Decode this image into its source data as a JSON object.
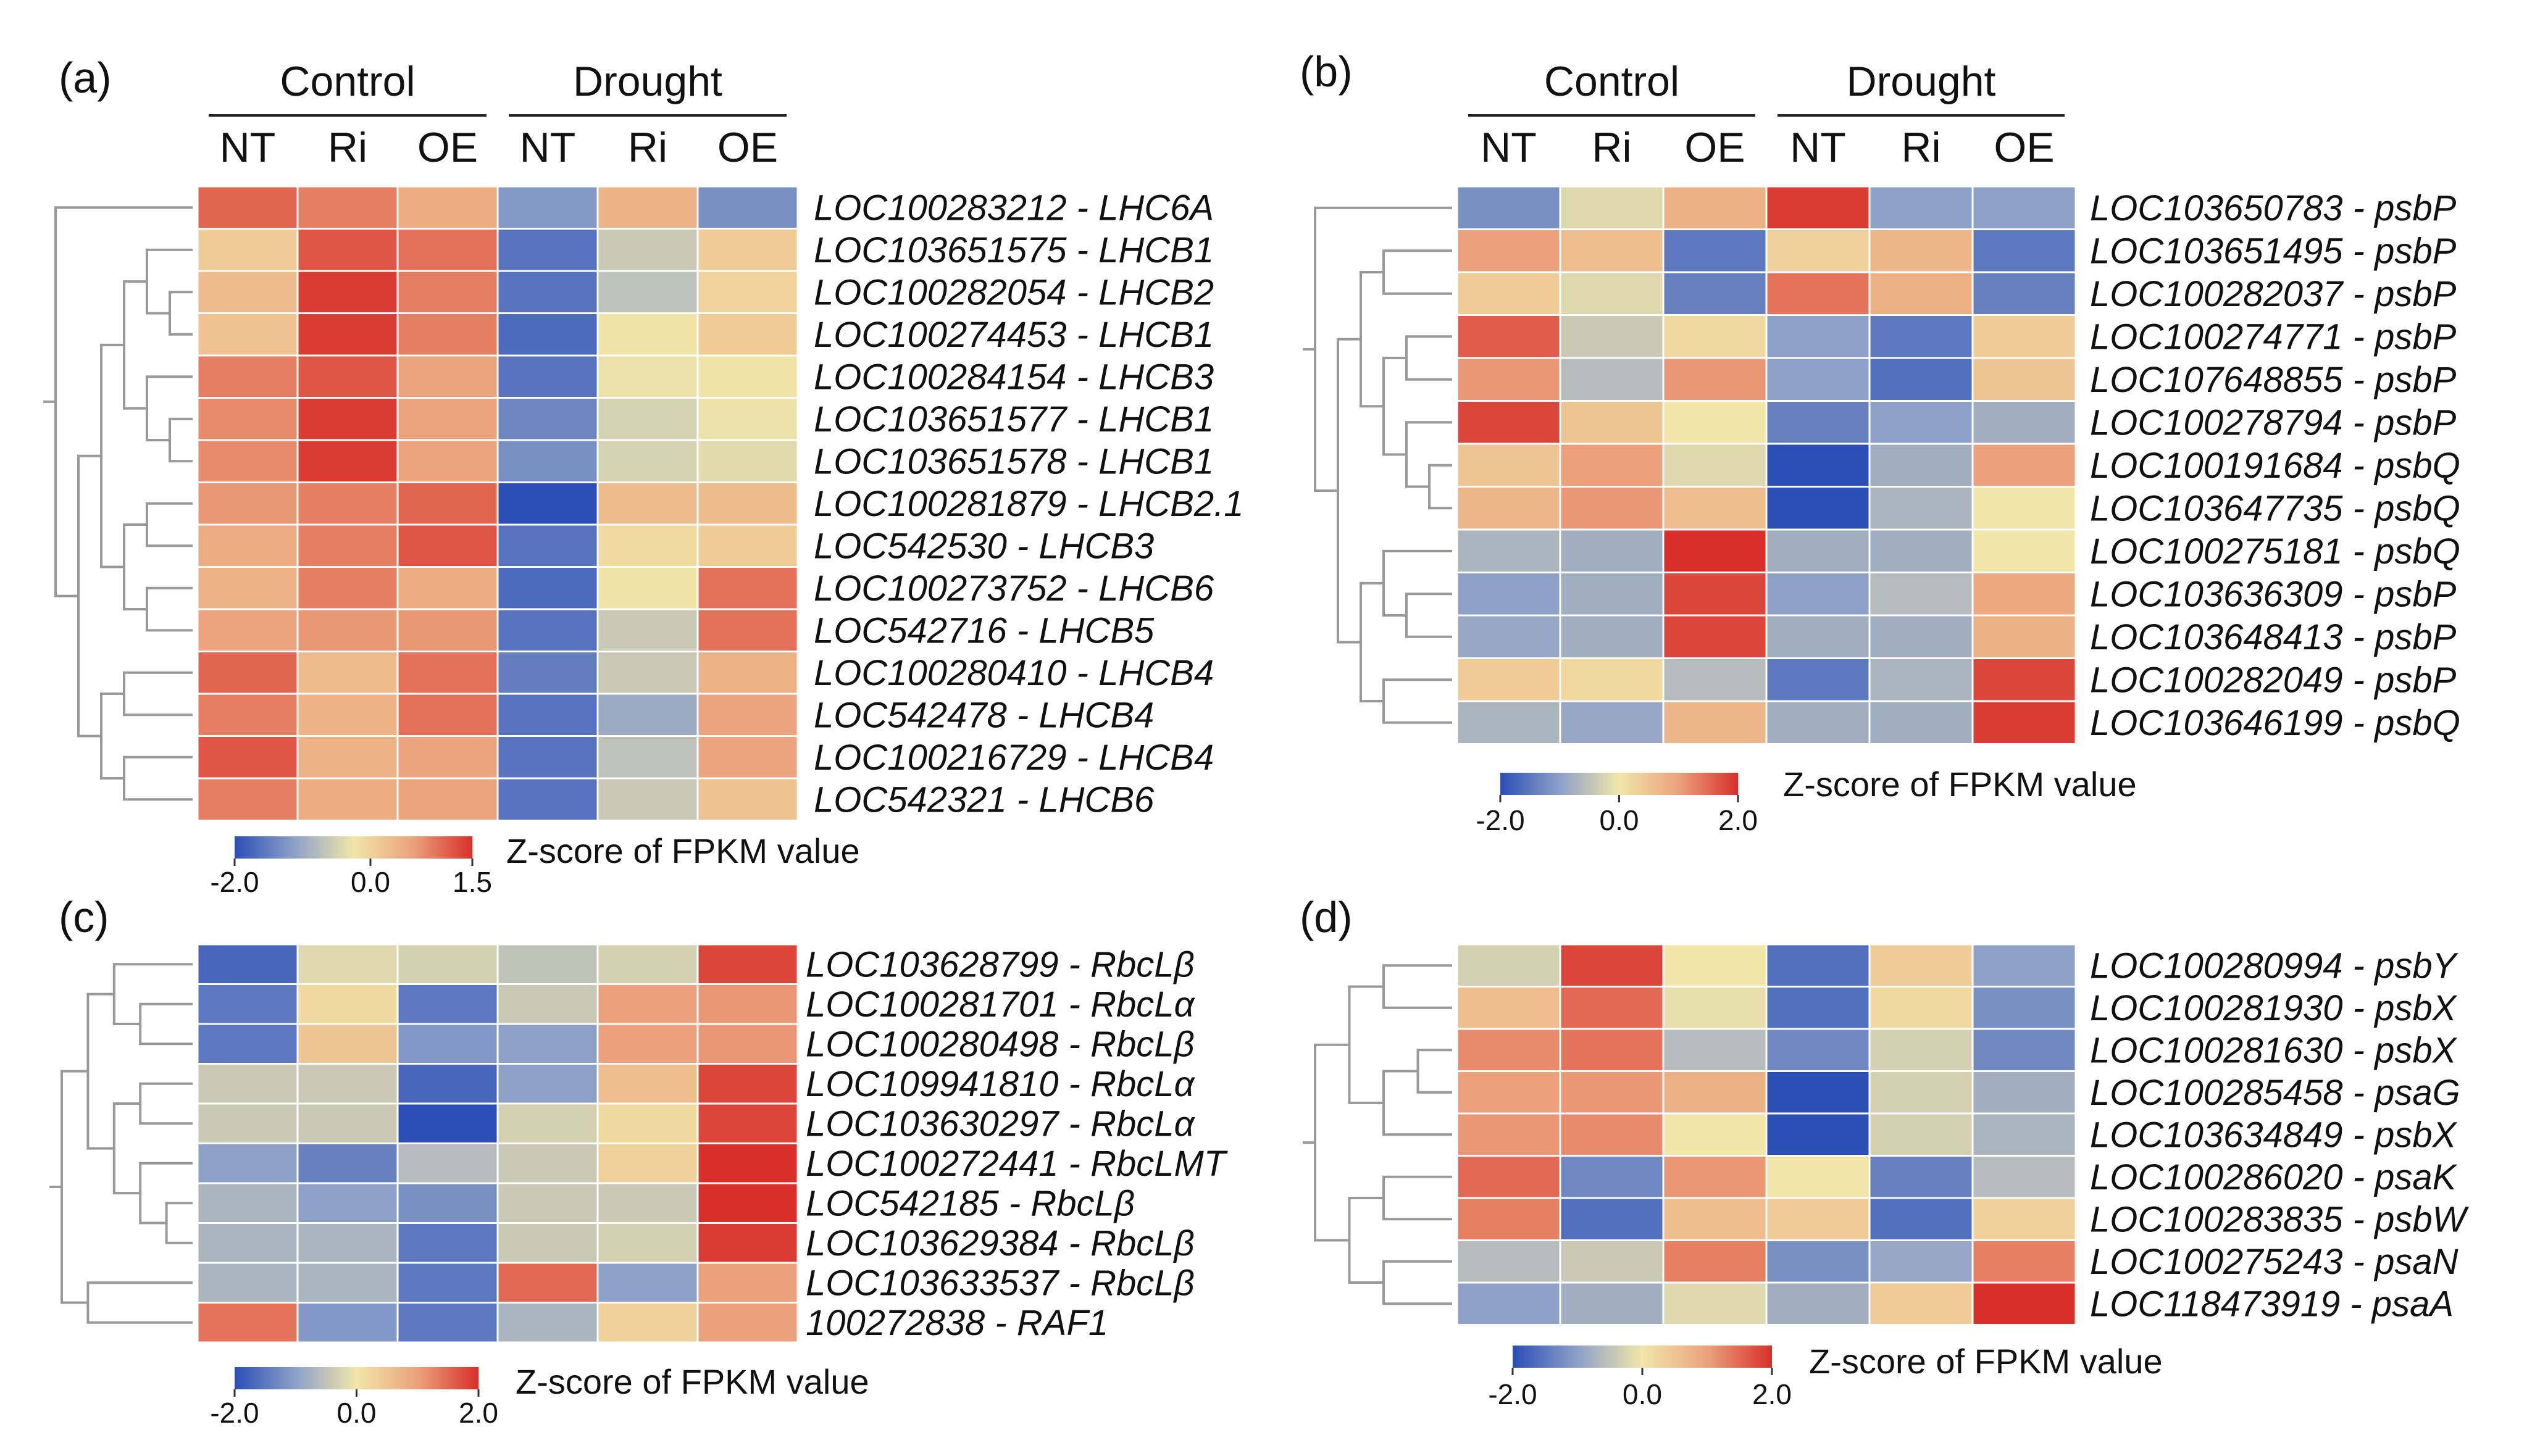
{
  "colors": {
    "low": "#2b4fb5",
    "mid": "#f1e6a8",
    "high": "#d82f2a",
    "dendrogram": "#999999",
    "grid": "#ffffff"
  },
  "chart_data": [
    {
      "panel": "(a)",
      "type": "heatmap",
      "groups": [
        "Control",
        "Drought"
      ],
      "columns": [
        "NT",
        "Ri",
        "OE",
        "NT",
        "Ri",
        "OE"
      ],
      "rows": [
        "LOC100283212 - LHC6A",
        "LOC103651575 - LHCB1",
        "LOC100282054 - LHCB2",
        "LOC100274453 - LHCB1",
        "LOC100284154 - LHCB3",
        "LOC103651577 - LHCB1",
        "LOC103651578 - LHCB1",
        "LOC100281879 - LHCB2.1",
        "LOC542530 - LHCB3",
        "LOC100273752 - LHCB6",
        "LOC542716 - LHCB5",
        "LOC100280410 - LHCB4",
        "LOC542478 - LHCB4",
        "LOC100216729 - LHCB4",
        "LOC542321 - LHCB6"
      ],
      "values": [
        [
          1.1,
          0.9,
          0.5,
          -1.2,
          0.4,
          -1.3
        ],
        [
          0.1,
          1.2,
          1.0,
          -1.6,
          -0.6,
          0.1
        ],
        [
          0.3,
          1.4,
          0.9,
          -1.6,
          -0.7,
          0.0
        ],
        [
          0.2,
          1.4,
          0.9,
          -1.7,
          -0.2,
          0.1
        ],
        [
          0.9,
          1.2,
          0.6,
          -1.6,
          -0.3,
          -0.2
        ],
        [
          0.8,
          1.4,
          0.6,
          -1.4,
          -0.5,
          -0.3
        ],
        [
          0.8,
          1.4,
          0.6,
          -1.3,
          -0.5,
          -0.4
        ],
        [
          0.7,
          0.9,
          1.1,
          -2.0,
          0.3,
          0.3
        ],
        [
          0.5,
          0.9,
          1.2,
          -1.6,
          -0.1,
          0.1
        ],
        [
          0.4,
          0.9,
          0.5,
          -1.7,
          -0.2,
          1.0
        ],
        [
          0.6,
          0.7,
          0.7,
          -1.6,
          -0.6,
          1.0
        ],
        [
          1.1,
          0.3,
          1.0,
          -1.5,
          -0.6,
          0.4
        ],
        [
          0.9,
          0.4,
          1.0,
          -1.6,
          -1.0,
          0.6
        ],
        [
          1.2,
          0.4,
          0.6,
          -1.6,
          -0.7,
          0.6
        ],
        [
          0.9,
          0.5,
          0.6,
          -1.6,
          -0.6,
          0.2
        ]
      ],
      "colorbar": {
        "min": -2.0,
        "max": 1.5,
        "ticks": [
          "-2.0",
          "0.0",
          "1.5"
        ],
        "title": "Z-score of FPKM value"
      }
    },
    {
      "panel": "(b)",
      "type": "heatmap",
      "groups": [
        "Control",
        "Drought"
      ],
      "columns": [
        "NT",
        "Ri",
        "OE",
        "NT",
        "Ri",
        "OE"
      ],
      "rows": [
        "LOC103650783 - psbP",
        "LOC103651495 - psbP",
        "LOC100282037 - psbP",
        "LOC100274771 - psbP",
        "LOC107648855 - psbP",
        "LOC100278794 - psbP",
        "LOC100191684 - psbQ",
        "LOC103647735 - psbQ",
        "LOC100275181 - psbQ",
        "LOC103636309 - psbP",
        "LOC103648413 - psbP",
        "LOC100282049 - psbP",
        "LOC103646199 - psbQ"
      ],
      "values": [
        [
          -1.2,
          -0.2,
          0.8,
          1.9,
          -1.0,
          -1.0
        ],
        [
          1.0,
          0.6,
          -1.5,
          0.3,
          0.7,
          -1.5
        ],
        [
          0.4,
          -0.2,
          -1.4,
          1.4,
          0.8,
          -1.4
        ],
        [
          1.6,
          -0.4,
          0.2,
          -1.0,
          -1.5,
          0.4
        ],
        [
          1.1,
          -0.6,
          1.1,
          -1.0,
          -1.6,
          0.5
        ],
        [
          1.8,
          0.5,
          0.0,
          -1.4,
          -1.0,
          -0.8
        ],
        [
          0.5,
          1.0,
          -0.2,
          -2.0,
          -0.8,
          1.0
        ],
        [
          0.7,
          1.1,
          0.6,
          -2.0,
          -0.7,
          0.0
        ],
        [
          -0.7,
          -0.8,
          2.0,
          -0.8,
          -0.8,
          0.0
        ],
        [
          -1.0,
          -0.8,
          1.8,
          -1.0,
          -0.6,
          0.9
        ],
        [
          -0.9,
          -0.8,
          1.8,
          -0.8,
          -0.8,
          0.8
        ],
        [
          0.4,
          0.2,
          -0.6,
          -1.5,
          -0.7,
          1.8
        ],
        [
          -0.7,
          -0.9,
          0.7,
          -0.8,
          -0.8,
          1.9
        ]
      ],
      "colorbar": {
        "min": -2.0,
        "max": 2.0,
        "ticks": [
          "-2.0",
          "0.0",
          "2.0"
        ],
        "title": "Z-score of FPKM value"
      }
    },
    {
      "panel": "(c)",
      "type": "heatmap",
      "groups": [],
      "columns": [
        "NT",
        "Ri",
        "OE",
        "NT",
        "Ri",
        "OE"
      ],
      "rows": [
        "LOC103628799 - RbcLβ",
        "LOC100281701 - RbcLα",
        "LOC100280498 - RbcLβ",
        "LOC109941810 - RbcLα",
        "LOC103630297 - RbcLα",
        "LOC100272441 - RbcLMT",
        "LOC542185 - RbcLβ",
        "LOC103629384 - RbcLβ",
        "LOC103633537 - RbcLβ",
        "100272838 - RAF1"
      ],
      "values": [
        [
          -1.7,
          -0.2,
          -0.3,
          -0.5,
          -0.3,
          1.8
        ],
        [
          -1.5,
          0.2,
          -1.5,
          -0.4,
          1.0,
          1.1
        ],
        [
          -1.5,
          0.5,
          -1.1,
          -1.0,
          1.0,
          1.1
        ],
        [
          -0.4,
          -0.4,
          -1.7,
          -1.0,
          0.6,
          1.8
        ],
        [
          -0.4,
          -0.4,
          -2.0,
          -0.3,
          0.2,
          1.8
        ],
        [
          -1.0,
          -1.4,
          -0.6,
          -0.4,
          0.3,
          2.0
        ],
        [
          -0.7,
          -1.0,
          -1.2,
          -0.4,
          -0.4,
          2.0
        ],
        [
          -0.7,
          -0.7,
          -1.5,
          -0.4,
          -0.3,
          1.9
        ],
        [
          -0.7,
          -0.7,
          -1.5,
          1.5,
          -1.0,
          1.0
        ],
        [
          1.4,
          -1.1,
          -1.5,
          -0.7,
          0.3,
          1.0
        ]
      ],
      "colorbar": {
        "min": -2.0,
        "max": 2.0,
        "ticks": [
          "-2.0",
          "0.0",
          "2.0"
        ],
        "title": "Z-score of FPKM value"
      }
    },
    {
      "panel": "(d)",
      "type": "heatmap",
      "groups": [],
      "columns": [
        "NT",
        "Ri",
        "OE",
        "NT",
        "Ri",
        "OE"
      ],
      "rows": [
        "LOC100280994 - psbY",
        "LOC100281930 - psbX",
        "LOC100281630 - psbX",
        "LOC100285458 - psaG",
        "LOC103634849 - psbX",
        "LOC100286020 - psaK",
        "LOC100283835 - psbW",
        "LOC100275243 - psaN",
        "LOC118473919 - psaA"
      ],
      "values": [
        [
          -0.3,
          1.8,
          0.0,
          -1.6,
          0.4,
          -1.0
        ],
        [
          0.6,
          1.5,
          -0.1,
          -1.6,
          0.2,
          -1.2
        ],
        [
          1.2,
          1.4,
          -0.6,
          -1.3,
          -0.3,
          -1.3
        ],
        [
          1.0,
          1.1,
          0.8,
          -2.0,
          -0.3,
          -0.8
        ],
        [
          1.1,
          1.2,
          0.0,
          -2.0,
          -0.3,
          -0.7
        ],
        [
          1.5,
          -1.3,
          1.1,
          0.0,
          -1.4,
          -0.6
        ],
        [
          1.3,
          -1.6,
          0.6,
          0.4,
          -1.6,
          0.3
        ],
        [
          -0.6,
          -0.4,
          1.3,
          -1.2,
          -0.9,
          1.3
        ],
        [
          -1.0,
          -0.8,
          -0.2,
          -0.8,
          0.4,
          2.0
        ]
      ],
      "colorbar": {
        "min": -2.0,
        "max": 2.0,
        "ticks": [
          "-2.0",
          "0.0",
          "2.0"
        ],
        "title": "Z-score of FPKM value"
      }
    }
  ]
}
